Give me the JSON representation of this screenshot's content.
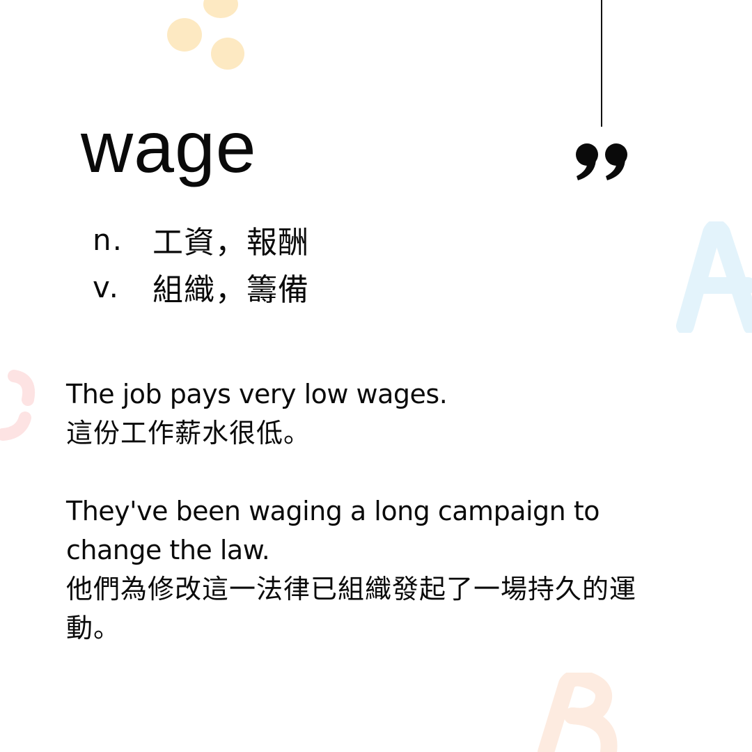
{
  "card": {
    "headword": "wage",
    "definitions": [
      {
        "pos": "n.",
        "meaning": "工資，報酬"
      },
      {
        "pos": "v.",
        "meaning": "組織，籌備"
      }
    ],
    "examples": [
      {
        "en": "The job pays very low wages.",
        "zh": "這份工作薪水很低。"
      },
      {
        "en_line1": "They've been waging a long campaign to",
        "en_line2": "change the law.",
        "zh_line1": "他們為修改這一法律已組織發起了一場持久的運",
        "zh_line2": "動。"
      }
    ]
  },
  "decor": {
    "letters": [
      "A",
      "C",
      "B"
    ],
    "icons": [
      "quote-mark-icon"
    ],
    "colors": {
      "dot_yellow": "#fde9c2",
      "letter_blue": "#e3f3fb",
      "letter_pink": "#fde3e3",
      "letter_peach": "#fdebe0",
      "ink": "#0a0a0a"
    }
  }
}
